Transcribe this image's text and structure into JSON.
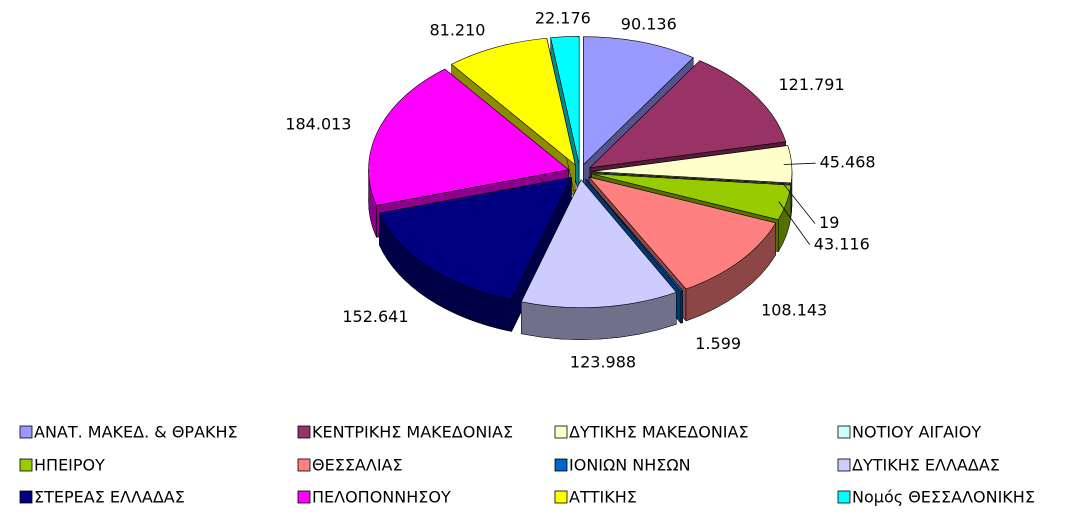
{
  "chart_data": {
    "type": "pie3d",
    "categories": [
      "ΑΝΑΤ. ΜΑΚΕΔ. & ΘΡΑΚΗΣ",
      "ΚΕΝΤΡΙΚΗΣ ΜΑΚΕΔΟΝΙΑΣ",
      "ΔΥΤΙΚΗΣ ΜΑΚΕΔΟΝΙΑΣ",
      "ΝΟΤΙΟΥ ΑΙΓΑΙΟΥ",
      "ΗΠΕΙΡΟΥ",
      "ΘΕΣΣΑΛΙΑΣ",
      "ΙΟΝΙΩΝ ΝΗΣΩΝ",
      "ΔΥΤΙΚΗΣ ΕΛΛΑΔΑΣ",
      "ΣΤΕΡΕΑΣ ΕΛΛΑΔΑΣ",
      "ΠΕΛΟΠΟΝΝΗΣΟΥ",
      "ΑΤΤΙΚΗΣ",
      "Νομός ΘΕΣΣΑΛΟΝΙΚΗΣ"
    ],
    "values": [
      90136,
      121791,
      45468,
      19,
      43116,
      108143,
      1599,
      123988,
      152641,
      184013,
      81210,
      22176
    ],
    "value_labels": [
      "90.136",
      "121.791",
      "45.468",
      "19",
      "43.116",
      "108.143",
      "1.599",
      "123.988",
      "152.641",
      "184.013",
      "81.210",
      "22.176"
    ],
    "colors": [
      "#9999ff",
      "#993366",
      "#ffffcc",
      "#ccffff",
      "#99cc00",
      "#ff8080",
      "#0066cc",
      "#ccccff",
      "#000080",
      "#ff00ff",
      "#ffff00",
      "#00ffff"
    ],
    "legend": "bottom"
  }
}
